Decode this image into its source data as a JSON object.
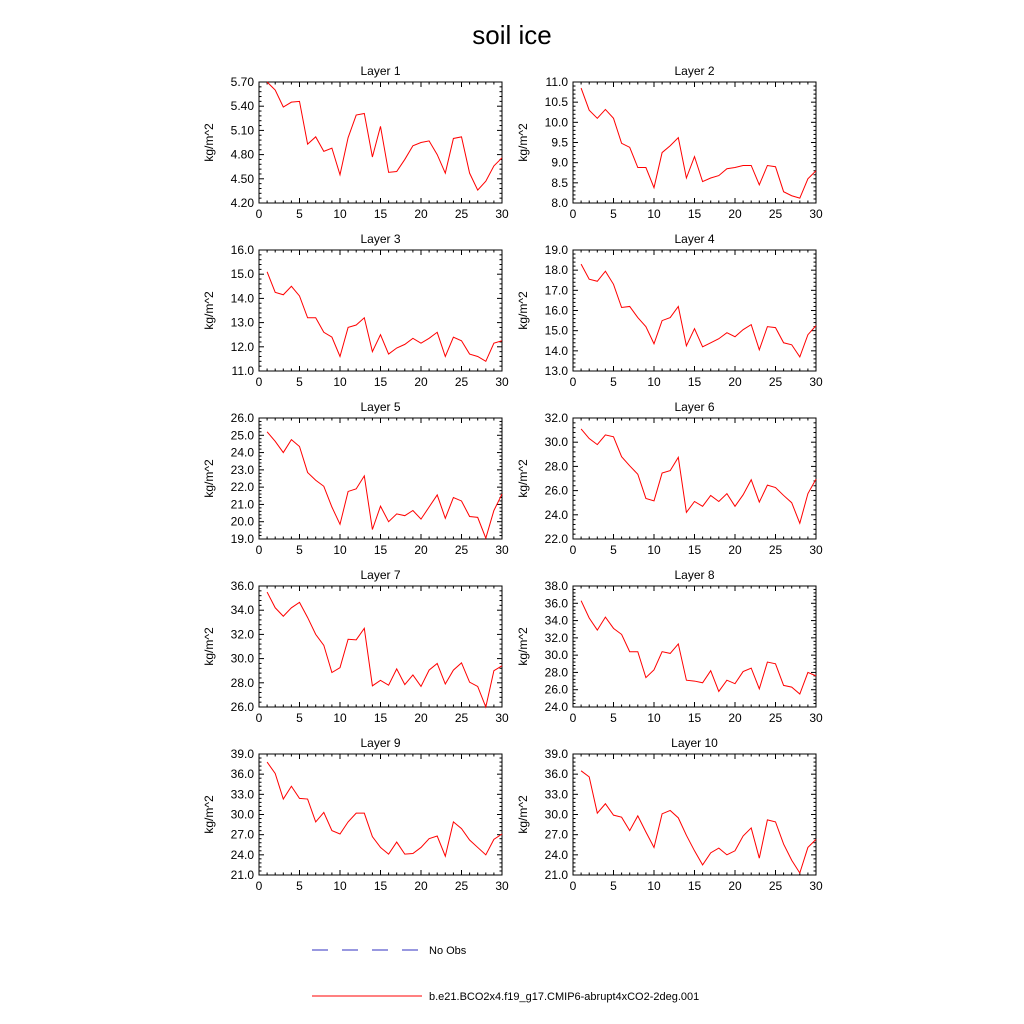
{
  "title": "soil ice",
  "colors": {
    "model": "#ff0000",
    "obs": "#3030c0",
    "axis": "#000000"
  },
  "legend": {
    "obs_label": "No Obs",
    "model_label": "b.e21.BCO2x4.f19_g17.CMIP6-abrupt4xCO2-2deg.001"
  },
  "chart_data": [
    {
      "type": "line",
      "title": "Layer 1",
      "ylabel": "kg/m^2",
      "xlim": [
        0,
        30
      ],
      "ylim": [
        4.2,
        5.7
      ],
      "xticks": [
        "0",
        "5",
        "10",
        "15",
        "20",
        "25",
        "30"
      ],
      "yticks": [
        "4.20",
        "4.50",
        "4.80",
        "5.10",
        "5.40",
        "5.70"
      ],
      "x": [
        1,
        2,
        3,
        4,
        5,
        6,
        7,
        8,
        9,
        10,
        11,
        12,
        13,
        14,
        15,
        16,
        17,
        18,
        19,
        20,
        21,
        22,
        23,
        24,
        25,
        26,
        27,
        28,
        29,
        30
      ],
      "series": [
        {
          "values": [
            5.7,
            5.6,
            5.39,
            5.45,
            5.46,
            4.93,
            5.02,
            4.84,
            4.88,
            4.55,
            5.01,
            5.29,
            5.31,
            4.77,
            5.15,
            4.58,
            4.59,
            4.74,
            4.91,
            4.95,
            4.97,
            4.8,
            4.57,
            5.0,
            5.02,
            4.57,
            4.36,
            4.47,
            4.66,
            4.76
          ]
        }
      ]
    },
    {
      "type": "line",
      "title": "Layer 2",
      "ylabel": "kg/m^2",
      "xlim": [
        0,
        30
      ],
      "ylim": [
        8.0,
        11.0
      ],
      "xticks": [
        "0",
        "5",
        "10",
        "15",
        "20",
        "25",
        "30"
      ],
      "yticks": [
        "8.0",
        "8.5",
        "9.0",
        "9.5",
        "10.0",
        "10.5",
        "11.0"
      ],
      "x": [
        1,
        2,
        3,
        4,
        5,
        6,
        7,
        8,
        9,
        10,
        11,
        12,
        13,
        14,
        15,
        16,
        17,
        18,
        19,
        20,
        21,
        22,
        23,
        24,
        25,
        26,
        27,
        28,
        29,
        30
      ],
      "series": [
        {
          "values": [
            10.85,
            10.3,
            10.1,
            10.32,
            10.1,
            9.48,
            9.38,
            8.88,
            8.88,
            8.38,
            9.25,
            9.42,
            9.62,
            8.62,
            9.15,
            8.53,
            8.62,
            8.68,
            8.85,
            8.88,
            8.93,
            8.93,
            8.45,
            8.93,
            8.9,
            8.28,
            8.18,
            8.12,
            8.6,
            8.8
          ]
        }
      ]
    },
    {
      "type": "line",
      "title": "Layer 3",
      "ylabel": "kg/m^2",
      "xlim": [
        0,
        30
      ],
      "ylim": [
        11.0,
        16.0
      ],
      "xticks": [
        "0",
        "5",
        "10",
        "15",
        "20",
        "25",
        "30"
      ],
      "yticks": [
        "11.0",
        "12.0",
        "13.0",
        "14.0",
        "15.0",
        "16.0"
      ],
      "x": [
        1,
        2,
        3,
        4,
        5,
        6,
        7,
        8,
        9,
        10,
        11,
        12,
        13,
        14,
        15,
        16,
        17,
        18,
        19,
        20,
        21,
        22,
        23,
        24,
        25,
        26,
        27,
        28,
        29,
        30
      ],
      "series": [
        {
          "values": [
            15.1,
            14.25,
            14.15,
            14.5,
            14.1,
            13.2,
            13.2,
            12.6,
            12.4,
            11.6,
            12.8,
            12.9,
            13.2,
            11.8,
            12.5,
            11.7,
            11.95,
            12.1,
            12.35,
            12.15,
            12.35,
            12.6,
            11.6,
            12.4,
            12.25,
            11.7,
            11.6,
            11.4,
            12.15,
            12.25
          ]
        }
      ]
    },
    {
      "type": "line",
      "title": "Layer 4",
      "ylabel": "kg/m^2",
      "xlim": [
        0,
        30
      ],
      "ylim": [
        13.0,
        19.0
      ],
      "xticks": [
        "0",
        "5",
        "10",
        "15",
        "20",
        "25",
        "30"
      ],
      "yticks": [
        "13.0",
        "14.0",
        "15.0",
        "16.0",
        "17.0",
        "18.0",
        "19.0"
      ],
      "x": [
        1,
        2,
        3,
        4,
        5,
        6,
        7,
        8,
        9,
        10,
        11,
        12,
        13,
        14,
        15,
        16,
        17,
        18,
        19,
        20,
        21,
        22,
        23,
        24,
        25,
        26,
        27,
        28,
        29,
        30
      ],
      "series": [
        {
          "values": [
            18.3,
            17.55,
            17.45,
            17.95,
            17.3,
            16.15,
            16.2,
            15.65,
            15.2,
            14.35,
            15.5,
            15.65,
            16.2,
            14.25,
            15.1,
            14.2,
            14.4,
            14.6,
            14.9,
            14.7,
            15.05,
            15.3,
            14.05,
            15.2,
            15.15,
            14.4,
            14.3,
            13.7,
            14.8,
            15.25
          ]
        }
      ]
    },
    {
      "type": "line",
      "title": "Layer 5",
      "ylabel": "kg/m^2",
      "xlim": [
        0,
        30
      ],
      "ylim": [
        19.0,
        26.0
      ],
      "xticks": [
        "0",
        "5",
        "10",
        "15",
        "20",
        "25",
        "30"
      ],
      "yticks": [
        "19.0",
        "20.0",
        "21.0",
        "22.0",
        "23.0",
        "24.0",
        "25.0",
        "26.0"
      ],
      "x": [
        1,
        2,
        3,
        4,
        5,
        6,
        7,
        8,
        9,
        10,
        11,
        12,
        13,
        14,
        15,
        16,
        17,
        18,
        19,
        20,
        21,
        22,
        23,
        24,
        25,
        26,
        27,
        28,
        29,
        30
      ],
      "series": [
        {
          "values": [
            25.2,
            24.65,
            24.0,
            24.75,
            24.35,
            22.85,
            22.4,
            22.05,
            20.85,
            19.85,
            21.75,
            21.9,
            22.65,
            19.55,
            20.9,
            20.0,
            20.45,
            20.35,
            20.65,
            20.15,
            20.85,
            21.55,
            20.2,
            21.4,
            21.2,
            20.3,
            20.25,
            19.05,
            20.65,
            21.6
          ]
        }
      ]
    },
    {
      "type": "line",
      "title": "Layer 6",
      "ylabel": "kg/m^2",
      "xlim": [
        0,
        30
      ],
      "ylim": [
        22.0,
        32.0
      ],
      "xticks": [
        "0",
        "5",
        "10",
        "15",
        "20",
        "25",
        "30"
      ],
      "yticks": [
        "22.0",
        "24.0",
        "26.0",
        "28.0",
        "30.0",
        "32.0"
      ],
      "x": [
        1,
        2,
        3,
        4,
        5,
        6,
        7,
        8,
        9,
        10,
        11,
        12,
        13,
        14,
        15,
        16,
        17,
        18,
        19,
        20,
        21,
        22,
        23,
        24,
        25,
        26,
        27,
        28,
        29,
        30
      ],
      "series": [
        {
          "values": [
            31.1,
            30.3,
            29.8,
            30.6,
            30.45,
            28.8,
            28.05,
            27.35,
            25.35,
            25.15,
            27.45,
            27.65,
            28.75,
            24.2,
            25.1,
            24.7,
            25.6,
            25.1,
            25.75,
            24.7,
            25.65,
            26.9,
            25.05,
            26.45,
            26.25,
            25.6,
            25.0,
            23.3,
            25.75,
            26.95
          ]
        }
      ]
    },
    {
      "type": "line",
      "title": "Layer 7",
      "ylabel": "kg/m^2",
      "xlim": [
        0,
        30
      ],
      "ylim": [
        26.0,
        36.0
      ],
      "xticks": [
        "0",
        "5",
        "10",
        "15",
        "20",
        "25",
        "30"
      ],
      "yticks": [
        "26.0",
        "28.0",
        "30.0",
        "32.0",
        "34.0",
        "36.0"
      ],
      "x": [
        1,
        2,
        3,
        4,
        5,
        6,
        7,
        8,
        9,
        10,
        11,
        12,
        13,
        14,
        15,
        16,
        17,
        18,
        19,
        20,
        21,
        22,
        23,
        24,
        25,
        26,
        27,
        28,
        29,
        30
      ],
      "series": [
        {
          "values": [
            35.5,
            34.2,
            33.5,
            34.2,
            34.65,
            33.4,
            32.0,
            31.1,
            28.85,
            29.25,
            31.6,
            31.55,
            32.5,
            27.75,
            28.2,
            27.8,
            29.15,
            27.85,
            28.65,
            27.7,
            29.05,
            29.6,
            27.9,
            29.05,
            29.65,
            28.05,
            27.7,
            26.0,
            29.0,
            29.4
          ]
        }
      ]
    },
    {
      "type": "line",
      "title": "Layer 8",
      "ylabel": "kg/m^2",
      "xlim": [
        0,
        30
      ],
      "ylim": [
        24.0,
        38.0
      ],
      "xticks": [
        "0",
        "5",
        "10",
        "15",
        "20",
        "25",
        "30"
      ],
      "yticks": [
        "24.0",
        "26.0",
        "28.0",
        "30.0",
        "32.0",
        "34.0",
        "36.0",
        "38.0"
      ],
      "x": [
        1,
        2,
        3,
        4,
        5,
        6,
        7,
        8,
        9,
        10,
        11,
        12,
        13,
        14,
        15,
        16,
        17,
        18,
        19,
        20,
        21,
        22,
        23,
        24,
        25,
        26,
        27,
        28,
        29,
        30
      ],
      "series": [
        {
          "values": [
            36.3,
            34.3,
            32.9,
            34.4,
            33.1,
            32.4,
            30.4,
            30.4,
            27.4,
            28.3,
            30.4,
            30.2,
            31.3,
            27.1,
            27.0,
            26.8,
            28.2,
            25.8,
            27.1,
            26.7,
            28.1,
            28.5,
            26.1,
            29.2,
            29.0,
            26.5,
            26.3,
            25.5,
            28.0,
            27.6
          ]
        }
      ]
    },
    {
      "type": "line",
      "title": "Layer 9",
      "ylabel": "kg/m^2",
      "xlim": [
        0,
        30
      ],
      "ylim": [
        21.0,
        39.0
      ],
      "xticks": [
        "0",
        "5",
        "10",
        "15",
        "20",
        "25",
        "30"
      ],
      "yticks": [
        "21.0",
        "24.0",
        "27.0",
        "30.0",
        "33.0",
        "36.0",
        "39.0"
      ],
      "x": [
        1,
        2,
        3,
        4,
        5,
        6,
        7,
        8,
        9,
        10,
        11,
        12,
        13,
        14,
        15,
        16,
        17,
        18,
        19,
        20,
        21,
        22,
        23,
        24,
        25,
        26,
        27,
        28,
        29,
        30
      ],
      "series": [
        {
          "values": [
            37.8,
            36.1,
            32.3,
            34.2,
            32.4,
            32.3,
            28.9,
            30.3,
            27.6,
            27.1,
            28.9,
            30.2,
            30.2,
            26.7,
            25.1,
            24.1,
            25.9,
            24.1,
            24.2,
            25.1,
            26.4,
            26.8,
            23.8,
            28.9,
            27.9,
            26.2,
            25.1,
            24.0,
            26.3,
            27.1
          ]
        }
      ]
    },
    {
      "type": "line",
      "title": "Layer 10",
      "ylabel": "kg/m^2",
      "xlim": [
        0,
        30
      ],
      "ylim": [
        21.0,
        39.0
      ],
      "xticks": [
        "0",
        "5",
        "10",
        "15",
        "20",
        "25",
        "30"
      ],
      "yticks": [
        "21.0",
        "24.0",
        "27.0",
        "30.0",
        "33.0",
        "36.0",
        "39.0"
      ],
      "x": [
        1,
        2,
        3,
        4,
        5,
        6,
        7,
        8,
        9,
        10,
        11,
        12,
        13,
        14,
        15,
        16,
        17,
        18,
        19,
        20,
        21,
        22,
        23,
        24,
        25,
        26,
        27,
        28,
        29,
        30
      ],
      "series": [
        {
          "values": [
            36.5,
            35.6,
            30.2,
            31.6,
            29.9,
            29.6,
            27.6,
            29.8,
            27.4,
            25.1,
            30.1,
            30.6,
            29.5,
            26.9,
            24.6,
            22.5,
            24.3,
            25.0,
            24.0,
            24.6,
            26.8,
            28.0,
            23.5,
            29.2,
            28.9,
            25.6,
            23.2,
            21.3,
            25.1,
            26.3
          ]
        }
      ]
    }
  ]
}
